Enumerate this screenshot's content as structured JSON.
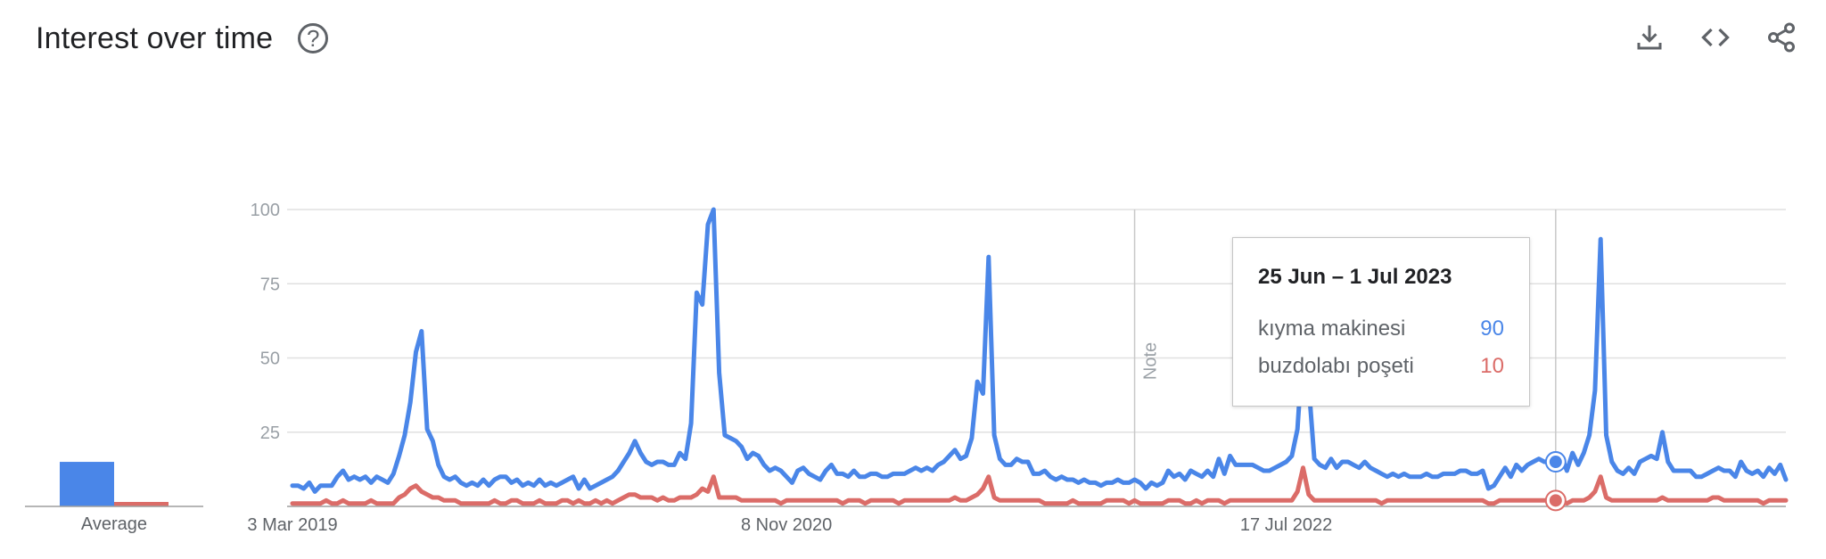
{
  "header": {
    "title": "Interest over time",
    "help_icon": "question-circle-icon",
    "actions": [
      {
        "name": "download-icon"
      },
      {
        "name": "embed-code-icon"
      },
      {
        "name": "share-icon"
      }
    ]
  },
  "colors": {
    "series1": "#4a86e8",
    "series2": "#db6c68",
    "grid": "#e0e0e0",
    "axis": "#9e9e9e"
  },
  "tooltip": {
    "date": "25 Jun – 1 Jul 2023",
    "rows": [
      {
        "label": "kıyma makinesi",
        "value": "90",
        "color": "#4a86e8"
      },
      {
        "label": "buzdolabı poşeti",
        "value": "10",
        "color": "#db6c68"
      }
    ]
  },
  "note": "Note",
  "average": {
    "label": "Average",
    "values": [
      15,
      1.5
    ]
  },
  "chart_data": {
    "type": "line",
    "ylim": [
      0,
      100
    ],
    "yticks": [
      25,
      50,
      75,
      100
    ],
    "xtick_labels": [
      {
        "label": "3 Mar 2019",
        "index": 0
      },
      {
        "label": "8 Nov 2020",
        "index": 88
      },
      {
        "label": "17 Jul 2022",
        "index": 177
      }
    ],
    "note_index": 150,
    "highlight_index": 225,
    "grid": true,
    "series": [
      {
        "name": "kıyma makinesi",
        "color": "#4a86e8",
        "values": [
          7,
          7,
          6,
          8,
          5,
          7,
          7,
          7,
          10,
          12,
          9,
          10,
          9,
          10,
          8,
          10,
          9,
          8,
          11,
          17,
          24,
          35,
          52,
          59,
          26,
          22,
          14,
          10,
          9,
          10,
          8,
          7,
          8,
          7,
          9,
          7,
          9,
          10,
          10,
          8,
          9,
          7,
          8,
          7,
          9,
          7,
          8,
          7,
          8,
          9,
          10,
          6,
          9,
          6,
          7,
          8,
          9,
          10,
          12,
          15,
          18,
          22,
          18,
          15,
          14,
          15,
          15,
          14,
          14,
          18,
          16,
          28,
          72,
          68,
          95,
          100,
          45,
          24,
          23,
          22,
          20,
          16,
          18,
          17,
          14,
          12,
          13,
          12,
          10,
          8,
          12,
          13,
          11,
          10,
          9,
          12,
          14,
          11,
          11,
          10,
          12,
          10,
          10,
          11,
          11,
          10,
          10,
          11,
          11,
          11,
          12,
          13,
          12,
          13,
          12,
          14,
          15,
          17,
          19,
          16,
          17,
          23,
          42,
          38,
          84,
          24,
          16,
          14,
          14,
          16,
          15,
          15,
          11,
          11,
          12,
          10,
          9,
          10,
          9,
          9,
          8,
          9,
          8,
          8,
          7,
          8,
          8,
          9,
          8,
          8,
          9,
          8,
          6,
          8,
          7,
          8,
          12,
          10,
          11,
          9,
          12,
          11,
          10,
          12,
          10,
          16,
          11,
          17,
          14,
          14,
          14,
          14,
          13,
          12,
          12,
          13,
          14,
          15,
          17,
          26,
          55,
          41,
          16,
          14,
          13,
          16,
          13,
          15,
          15,
          14,
          13,
          15,
          13,
          12,
          11,
          10,
          11,
          10,
          11,
          10,
          10,
          10,
          11,
          10,
          10,
          11,
          11,
          11,
          12,
          12,
          11,
          11,
          12,
          6,
          7,
          10,
          13,
          10,
          14,
          12,
          14,
          15,
          16,
          15,
          15,
          15,
          17,
          12,
          18,
          14,
          18,
          24,
          39,
          90,
          24,
          15,
          12,
          11,
          13,
          11,
          15,
          16,
          17,
          16,
          25,
          15,
          12,
          12,
          12,
          12,
          10,
          10,
          11,
          12,
          13,
          12,
          12,
          10,
          15,
          12,
          11,
          12,
          10,
          13,
          11,
          14,
          9
        ]
      },
      {
        "name": "buzdolabı poşeti",
        "color": "#db6c68",
        "values": [
          1,
          1,
          1,
          1,
          1,
          1,
          2,
          1,
          1,
          2,
          1,
          1,
          1,
          1,
          2,
          1,
          1,
          1,
          1,
          3,
          4,
          6,
          7,
          5,
          4,
          3,
          3,
          2,
          2,
          2,
          1,
          1,
          1,
          1,
          1,
          1,
          2,
          1,
          1,
          2,
          2,
          1,
          1,
          1,
          2,
          1,
          1,
          1,
          2,
          2,
          1,
          2,
          1,
          1,
          2,
          1,
          2,
          1,
          2,
          3,
          4,
          4,
          3,
          3,
          3,
          2,
          3,
          2,
          2,
          3,
          3,
          3,
          4,
          6,
          5,
          10,
          3,
          3,
          3,
          3,
          2,
          2,
          2,
          2,
          2,
          2,
          2,
          1,
          2,
          2,
          2,
          2,
          2,
          2,
          2,
          2,
          2,
          2,
          1,
          2,
          2,
          2,
          1,
          2,
          2,
          2,
          2,
          2,
          1,
          2,
          2,
          2,
          2,
          2,
          2,
          2,
          2,
          2,
          3,
          2,
          2,
          3,
          4,
          6,
          10,
          3,
          2,
          2,
          2,
          2,
          2,
          2,
          2,
          2,
          1,
          1,
          1,
          1,
          1,
          2,
          1,
          1,
          1,
          1,
          1,
          2,
          2,
          2,
          2,
          1,
          2,
          1,
          1,
          1,
          1,
          1,
          2,
          2,
          2,
          1,
          1,
          2,
          1,
          2,
          2,
          2,
          1,
          2,
          2,
          2,
          2,
          2,
          2,
          2,
          2,
          2,
          2,
          2,
          2,
          5,
          13,
          4,
          2,
          2,
          2,
          2,
          2,
          2,
          2,
          2,
          2,
          2,
          2,
          2,
          1,
          2,
          2,
          2,
          2,
          2,
          2,
          2,
          2,
          2,
          2,
          2,
          2,
          2,
          2,
          2,
          2,
          2,
          2,
          1,
          1,
          2,
          2,
          2,
          2,
          2,
          2,
          2,
          2,
          2,
          2,
          2,
          2,
          1,
          2,
          2,
          2,
          3,
          5,
          10,
          3,
          2,
          2,
          2,
          2,
          2,
          2,
          2,
          2,
          2,
          3,
          2,
          2,
          2,
          2,
          2,
          2,
          2,
          2,
          3,
          3,
          2,
          2,
          2,
          2,
          2,
          2,
          2,
          1,
          2,
          2,
          2,
          2
        ]
      }
    ]
  }
}
